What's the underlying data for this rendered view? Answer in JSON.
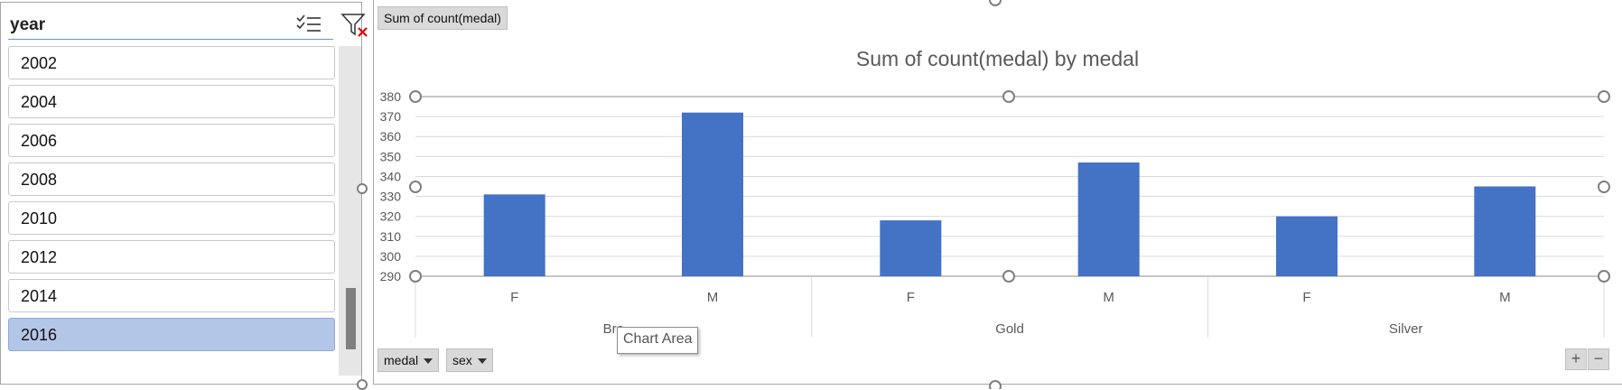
{
  "slicer": {
    "title": "year",
    "items": [
      {
        "label": "2002",
        "selected": false
      },
      {
        "label": "2004",
        "selected": false
      },
      {
        "label": "2006",
        "selected": false
      },
      {
        "label": "2008",
        "selected": false
      },
      {
        "label": "2010",
        "selected": false
      },
      {
        "label": "2012",
        "selected": false
      },
      {
        "label": "2014",
        "selected": false
      },
      {
        "label": "2016",
        "selected": true
      }
    ],
    "icons": {
      "multiselect": "multi-select-icon",
      "clear_filter": "clear-filter-icon"
    }
  },
  "pivot": {
    "value_field": "Sum of count(medal)",
    "axis_fields": [
      {
        "label": "medal",
        "icon": "dropdown-icon"
      },
      {
        "label": "sex",
        "icon": "dropdown-icon"
      }
    ],
    "tooltip": "Chart Area",
    "zoom": {
      "plus": "+",
      "minus": "−"
    }
  },
  "colors": {
    "bar": "#4472c4",
    "grid": "#d9d9d9",
    "selected_item": "#b4c6e7"
  },
  "chart_data": {
    "type": "bar",
    "title": "Sum of count(medal) by medal",
    "groups": [
      "Bronze",
      "Gold",
      "Silver"
    ],
    "group_labels_visible": [
      "Bro",
      "Gold",
      "Silver"
    ],
    "categories": [
      "F",
      "M",
      "F",
      "M",
      "F",
      "M"
    ],
    "values": [
      331,
      372,
      318,
      347,
      320,
      335
    ],
    "ylim": [
      290,
      380
    ],
    "yticks": [
      290,
      300,
      310,
      320,
      330,
      340,
      350,
      360,
      370,
      380
    ],
    "grid": true,
    "xlabel": "",
    "ylabel": ""
  }
}
